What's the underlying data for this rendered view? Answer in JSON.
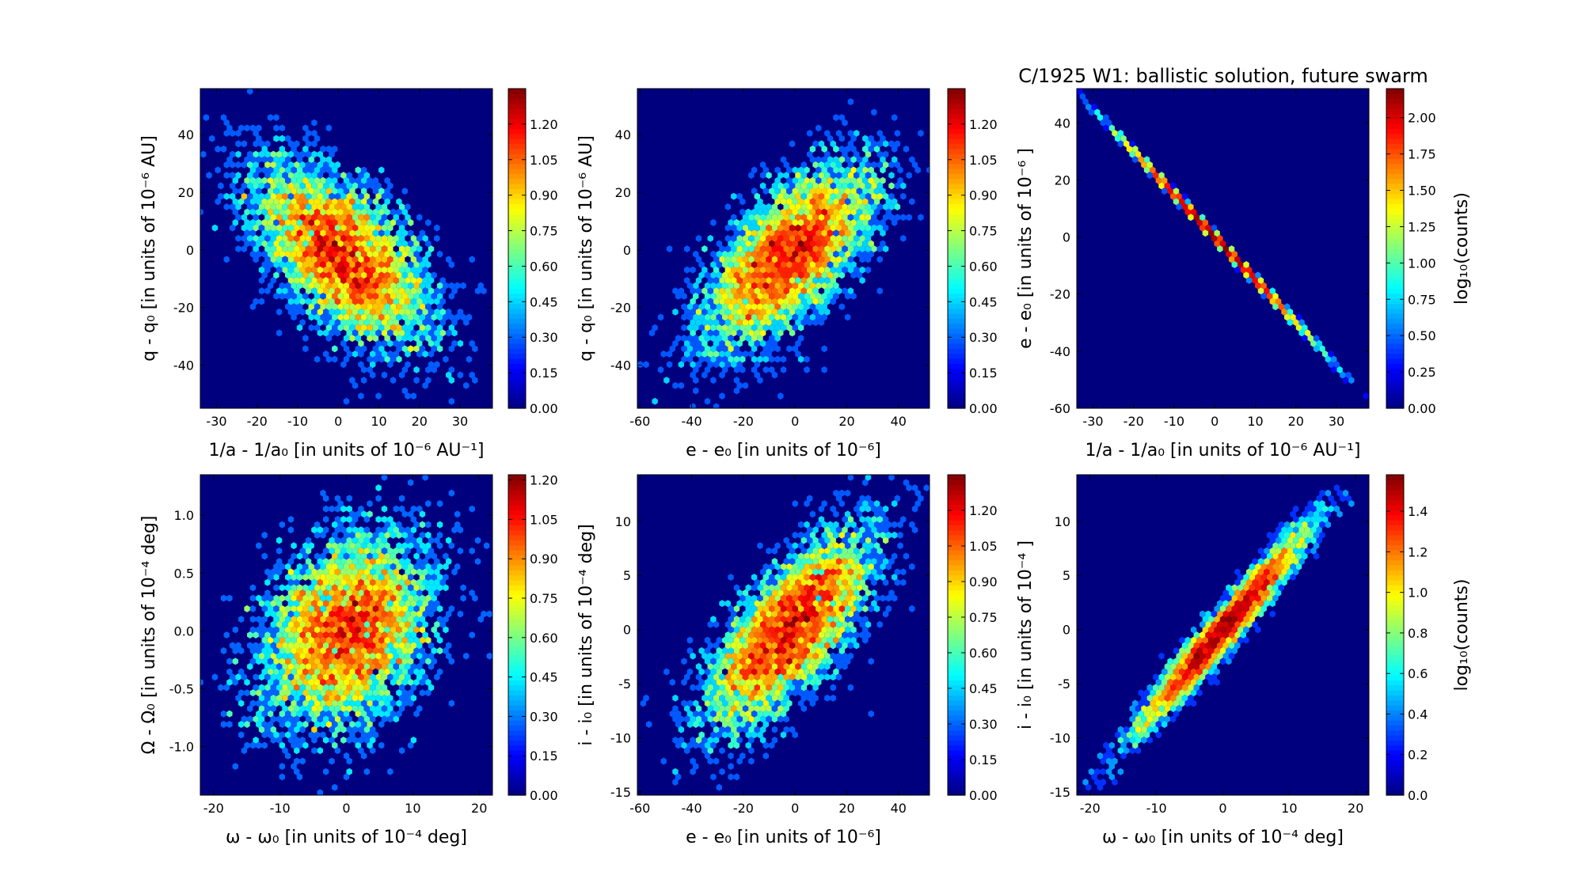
{
  "chart_data": {
    "title": "C/1925 W1:  ballistic solution, future swarm",
    "panels": [
      {
        "type": "heatmap",
        "kind": "hexbin",
        "xlabel": "1/a - 1/a₀ [in units of 10⁻⁶ AU⁻¹]",
        "ylabel": "q - q₀ [in units of 10⁻⁶ AU]",
        "cbar_label": "",
        "xlim": [
          -34,
          38
        ],
        "ylim": [
          -55,
          56
        ],
        "xticks": [
          "-30",
          "-20",
          "-10",
          "0",
          "10",
          "20",
          "30"
        ],
        "yticks": [
          "-40",
          "-20",
          "0",
          "20",
          "40"
        ],
        "cbar_ticks": [
          "0.00",
          "0.15",
          "0.30",
          "0.45",
          "0.60",
          "0.75",
          "0.90",
          "1.05",
          "1.20"
        ],
        "cbar_max": 1.35,
        "dist": {
          "mx": 1,
          "my": -2,
          "sx": 11,
          "sy": 16,
          "corr": -0.6,
          "n": 5000
        }
      },
      {
        "type": "heatmap",
        "kind": "hexbin",
        "xlabel": "e - e₀ [in units of 10⁻⁶]",
        "ylabel": "q - q₀ [in units of 10⁻⁶ AU]",
        "cbar_label": "",
        "xlim": [
          -61,
          52
        ],
        "ylim": [
          -55,
          56
        ],
        "xticks": [
          "-60",
          "-40",
          "-20",
          "0",
          "20",
          "40"
        ],
        "yticks": [
          "-40",
          "-20",
          "0",
          "20",
          "40"
        ],
        "cbar_ticks": [
          "0.00",
          "0.15",
          "0.30",
          "0.45",
          "0.60",
          "0.75",
          "0.90",
          "1.05",
          "1.20"
        ],
        "cbar_max": 1.35,
        "dist": {
          "mx": -2,
          "my": -2,
          "sx": 17,
          "sy": 16,
          "corr": 0.65,
          "n": 5000
        }
      },
      {
        "type": "heatmap",
        "kind": "hexbin",
        "xlabel": "1/a - 1/a₀ [in units of 10⁻⁶ AU⁻¹]",
        "ylabel": "e - e₀ [in units of 10⁻⁶ ]",
        "cbar_label": "log₁₀(counts)",
        "xlim": [
          -34,
          38
        ],
        "ylim": [
          -60,
          52
        ],
        "xticks": [
          "-30",
          "-20",
          "-10",
          "0",
          "10",
          "20",
          "30"
        ],
        "yticks": [
          "-60",
          "-40",
          "-20",
          "0",
          "20",
          "40"
        ],
        "cbar_ticks": [
          "0.00",
          "0.25",
          "0.50",
          "0.75",
          "1.00",
          "1.25",
          "1.50",
          "1.75",
          "2.00"
        ],
        "cbar_max": 2.2,
        "dist": {
          "mx": 0,
          "my": 0,
          "sx": 11,
          "sy": 16.5,
          "corr": -0.9995,
          "n": 5000
        }
      },
      {
        "type": "heatmap",
        "kind": "hexbin",
        "xlabel": "ω - ω₀ [in units of 10⁻⁴ deg]",
        "ylabel": "Ω - Ω₀ [in units of 10⁻⁴ deg]",
        "cbar_label": "",
        "xlim": [
          -22,
          22
        ],
        "ylim": [
          -1.42,
          1.35
        ],
        "xticks": [
          "-20",
          "-10",
          "0",
          "10",
          "20"
        ],
        "yticks": [
          "-1.0",
          "-0.5",
          "0.0",
          "0.5",
          "1.0"
        ],
        "cbar_ticks": [
          "0.00",
          "0.15",
          "0.30",
          "0.45",
          "0.60",
          "0.75",
          "0.90",
          "1.05",
          "1.20"
        ],
        "cbar_max": 1.22,
        "dist": {
          "mx": 0,
          "my": 0,
          "sx": 6.5,
          "sy": 0.42,
          "corr": 0.3,
          "n": 5000
        }
      },
      {
        "type": "heatmap",
        "kind": "hexbin",
        "xlabel": "e - e₀ [in units of 10⁻⁶]",
        "ylabel": "i - i₀ [in units of 10⁻⁴ deg]",
        "cbar_label": "",
        "xlim": [
          -61,
          52
        ],
        "ylim": [
          -15.3,
          14.3
        ],
        "xticks": [
          "-60",
          "-40",
          "-20",
          "0",
          "20",
          "40"
        ],
        "yticks": [
          "-15",
          "-10",
          "-5",
          "0",
          "5",
          "10"
        ],
        "cbar_ticks": [
          "0.00",
          "0.15",
          "0.30",
          "0.45",
          "0.60",
          "0.75",
          "0.90",
          "1.05",
          "1.20"
        ],
        "cbar_max": 1.35,
        "dist": {
          "mx": -2,
          "my": 0,
          "sx": 16,
          "sy": 4.6,
          "corr": 0.72,
          "n": 5000
        }
      },
      {
        "type": "heatmap",
        "kind": "hexbin",
        "xlabel": "ω - ω₀ [in units of 10⁻⁴ deg]",
        "ylabel": "i - i₀ [in units of 10⁻⁴ ]",
        "cbar_label": "log₁₀(counts)",
        "xlim": [
          -22,
          22
        ],
        "ylim": [
          -15.3,
          14.3
        ],
        "xticks": [
          "-20",
          "-10",
          "0",
          "10",
          "20"
        ],
        "yticks": [
          "-15",
          "-10",
          "-5",
          "0",
          "5",
          "10"
        ],
        "cbar_ticks": [
          "0.0",
          "0.2",
          "0.4",
          "0.6",
          "0.8",
          "1.0",
          "1.2",
          "1.4"
        ],
        "cbar_max": 1.58,
        "dist": {
          "mx": 0,
          "my": 0,
          "sx": 6.3,
          "sy": 4.6,
          "corr": 0.97,
          "n": 5000
        }
      }
    ],
    "colormap": "jet",
    "background_color": "#00007f"
  }
}
